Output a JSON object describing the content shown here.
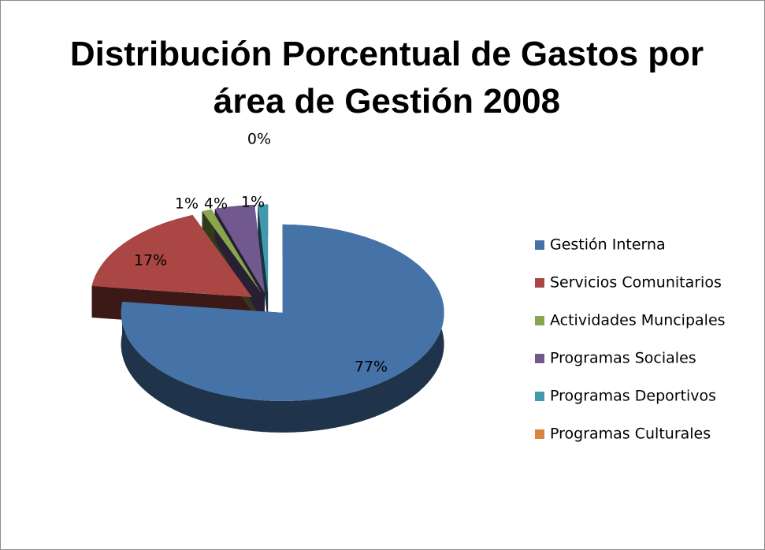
{
  "chart_data": {
    "type": "pie",
    "title": "Distribución Porcentual de Gastos por área de Gestión 2008",
    "categories": [
      "Gestión Interna",
      "Servicios Comunitarios",
      "Actividades Muncipales",
      "Programas Sociales",
      "Programas Deportivos",
      "Programas Culturales"
    ],
    "values": [
      77,
      17,
      1,
      4,
      1,
      0
    ],
    "value_labels": [
      "77%",
      "17%",
      "1%",
      "4%",
      "1%",
      "0%"
    ],
    "colors": [
      "#4572A7",
      "#AA4643",
      "#89A54E",
      "#71588F",
      "#4198AF",
      "#DB843D"
    ],
    "legend": "right"
  }
}
